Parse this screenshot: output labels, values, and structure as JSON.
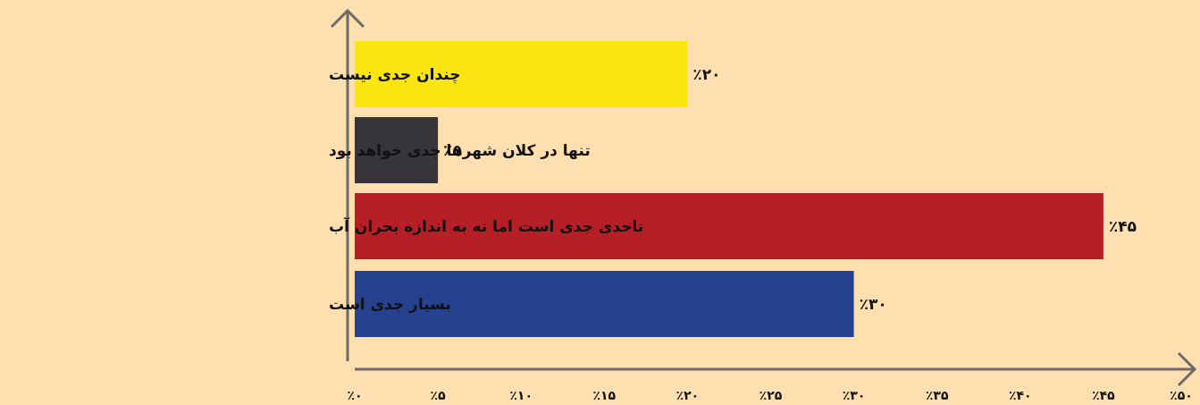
{
  "chart_data": {
    "type": "bar",
    "orientation": "horizontal",
    "categories": [
      "چندان جدی نیست",
      "تنها در کلان شهرها جدی خواهد بود",
      "تاحدی جدی است اما نه به اندازه بحران آب",
      "بسیار جدی است"
    ],
    "values": [
      20,
      5,
      45,
      30
    ],
    "value_labels": [
      "٪۲۰",
      "٪۵",
      "٪۴۵",
      "٪۳۰"
    ],
    "colors": [
      "#fae411",
      "#37353a",
      "#b71f27",
      "#26418e"
    ],
    "xlim": [
      0,
      50
    ],
    "xticks": [
      0,
      5,
      10,
      15,
      20,
      25,
      30,
      35,
      40,
      45,
      50
    ],
    "xtick_labels": [
      "٪۰",
      "٪۵",
      "٪۱۰",
      "٪۱۵",
      "٪۲۰",
      "٪۲۵",
      "٪۳۰",
      "٪۳۵",
      "٪۴۰",
      "٪۴۵",
      "٪۵۰"
    ],
    "grid": false,
    "legend": "none",
    "background": "#fddfb0",
    "axis_color": "#6e6a6a"
  }
}
